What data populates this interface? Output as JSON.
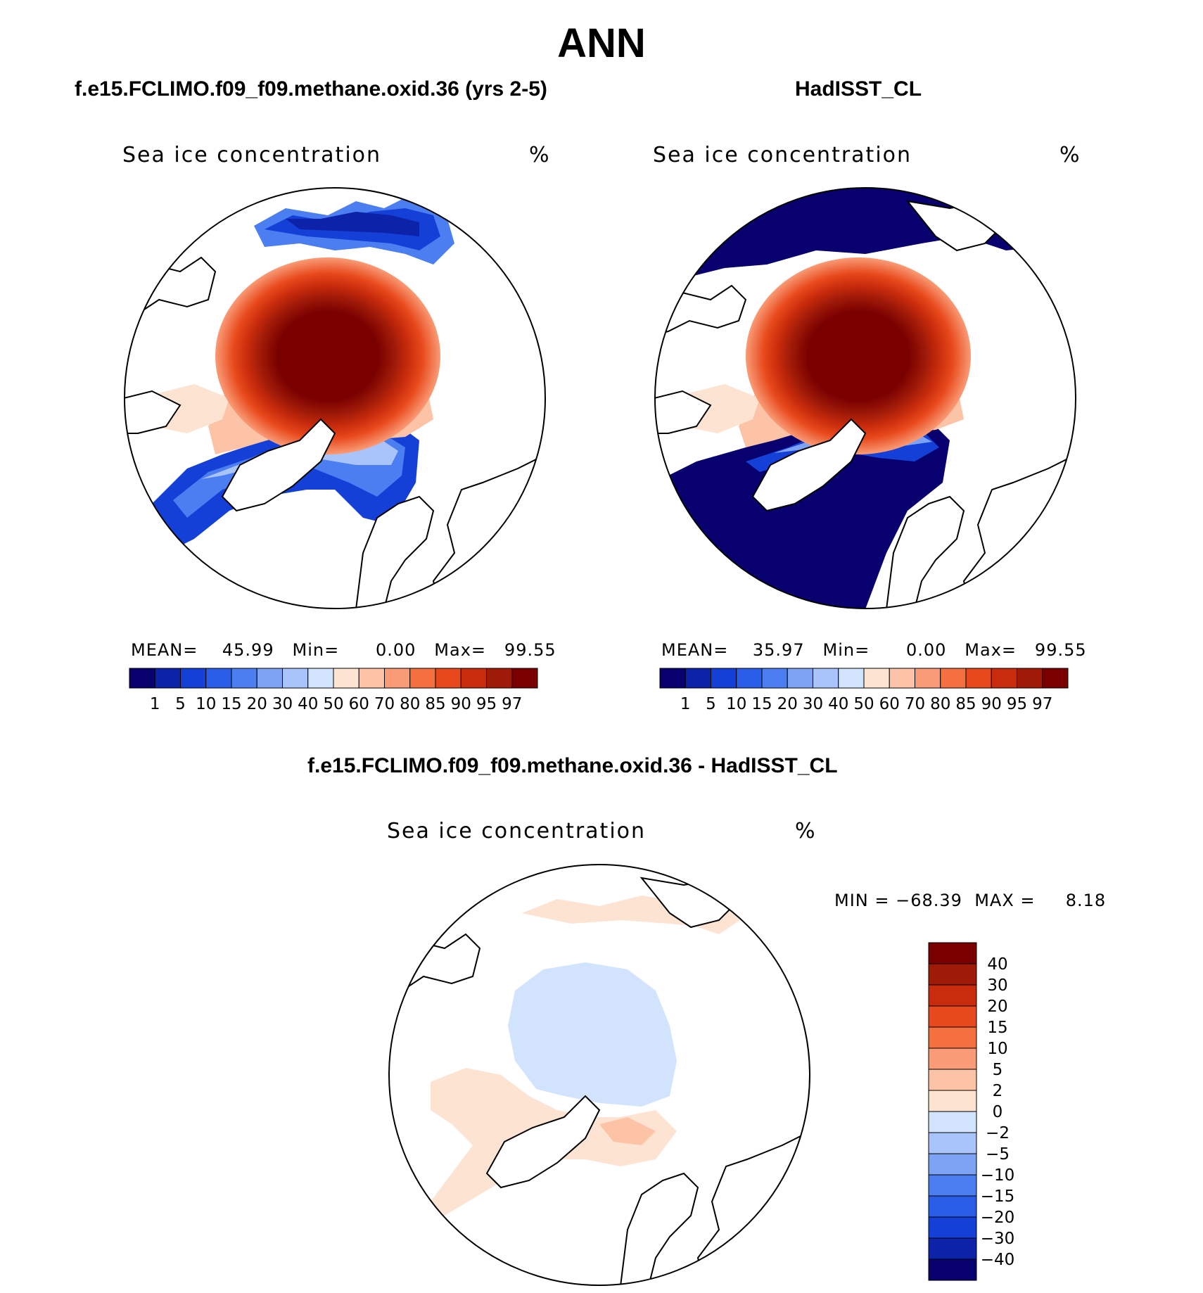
{
  "title": "ANN",
  "panels": [
    {
      "heading": "f.e15.FCLIMO.f09_f09.methane.oxid.36 (yrs 2-5)",
      "variable": "Sea ice concentration",
      "units": "%",
      "mean_label": "MEAN=",
      "mean": "45.99",
      "min_label": "Min=",
      "min": "0.00",
      "max_label": "Max=",
      "max": "99.55"
    },
    {
      "heading": "HadISST_CL",
      "variable": "Sea ice concentration",
      "units": "%",
      "mean_label": "MEAN=",
      "mean": "35.97",
      "min_label": "Min=",
      "min": "0.00",
      "max_label": "Max=",
      "max": "99.55"
    }
  ],
  "diff_panel": {
    "heading": "f.e15.FCLIMO.f09_f09.methane.oxid.36 - HadISST_CL",
    "variable": "Sea ice concentration",
    "units": "%",
    "min_label": "MIN =",
    "min": "−68.39",
    "max_label": "MAX =",
    "max": "8.18"
  },
  "colorbar_abs": {
    "levels": [
      "1",
      "5",
      "10",
      "15",
      "20",
      "30",
      "40",
      "50",
      "60",
      "70",
      "80",
      "85",
      "90",
      "95",
      "97"
    ],
    "colors": [
      "#08006e",
      "#0c22a8",
      "#1540d8",
      "#2a5de8",
      "#4b7ef0",
      "#7da3f5",
      "#a9c4fa",
      "#d2e4fd",
      "#fde3d2",
      "#fcc3a6",
      "#f99b76",
      "#f4703f",
      "#e8491c",
      "#c92c0c",
      "#a01a08",
      "#7a0000"
    ]
  },
  "colorbar_diff": {
    "levels": [
      "40",
      "30",
      "20",
      "15",
      "10",
      "5",
      "2",
      "0",
      "−2",
      "−5",
      "−10",
      "−15",
      "−20",
      "−30",
      "−40"
    ],
    "colors": [
      "#7a0000",
      "#a01a08",
      "#c92c0c",
      "#e8491c",
      "#f4703f",
      "#f99b76",
      "#fcc3a6",
      "#fde3d2",
      "#d2e4fd",
      "#a9c4fa",
      "#7da3f5",
      "#4b7ef0",
      "#2a5de8",
      "#1540d8",
      "#0c22a8",
      "#08006e"
    ]
  }
}
